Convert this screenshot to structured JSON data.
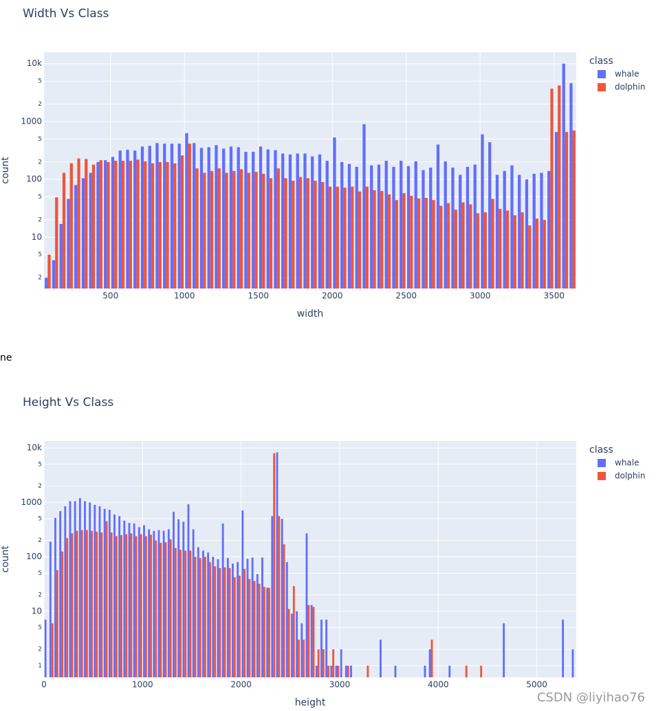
{
  "chart_data": [
    {
      "type": "histogram",
      "title": "Width Vs Class",
      "x_label": "width",
      "y_label": "count",
      "legend_title": "class",
      "log_y": true,
      "grid": true,
      "bins": [
        50,
        100,
        150,
        200,
        250,
        300,
        350,
        400,
        450,
        500,
        550,
        600,
        650,
        700,
        750,
        800,
        850,
        900,
        950,
        1000,
        1050,
        1100,
        1150,
        1200,
        1250,
        1300,
        1350,
        1400,
        1450,
        1500,
        1550,
        1600,
        1650,
        1700,
        1750,
        1800,
        1850,
        1900,
        1950,
        2000,
        2050,
        2100,
        2150,
        2200,
        2250,
        2300,
        2350,
        2400,
        2450,
        2500,
        2550,
        2600,
        2650,
        2700,
        2750,
        2800,
        2850,
        2900,
        2950,
        3000,
        3050,
        3100,
        3150,
        3200,
        3250,
        3300,
        3350,
        3400,
        3450,
        3500,
        3550,
        3600,
        3650
      ],
      "series": [
        {
          "name": "whale",
          "color": "#636efa",
          "values": [
            2,
            4,
            17,
            46,
            80,
            105,
            130,
            200,
            215,
            245,
            315,
            325,
            315,
            370,
            380,
            425,
            415,
            415,
            415,
            630,
            425,
            350,
            360,
            390,
            340,
            370,
            360,
            300,
            300,
            370,
            330,
            320,
            280,
            270,
            280,
            280,
            250,
            270,
            210,
            530,
            200,
            185,
            165,
            900,
            175,
            180,
            210,
            165,
            210,
            170,
            205,
            145,
            160,
            400,
            205,
            160,
            120,
            165,
            180,
            600,
            440,
            120,
            140,
            175,
            120,
            100,
            125,
            130,
            140,
            660,
            10000,
            4600
          ]
        },
        {
          "name": "dolphin",
          "color": "#ef553b",
          "values": [
            5,
            49,
            130,
            190,
            230,
            225,
            180,
            215,
            200,
            210,
            210,
            210,
            220,
            205,
            190,
            200,
            200,
            190,
            260,
            415,
            155,
            130,
            140,
            155,
            130,
            140,
            150,
            130,
            135,
            125,
            105,
            155,
            105,
            95,
            110,
            105,
            95,
            90,
            75,
            75,
            72,
            75,
            62,
            75,
            65,
            63,
            55,
            44,
            58,
            52,
            47,
            48,
            44,
            35,
            39,
            30,
            40,
            37,
            26,
            27,
            46,
            31,
            29,
            24,
            27,
            16,
            21,
            20,
            3700,
            4200,
            660,
            700
          ]
        }
      ],
      "xlim": [
        50,
        3650
      ],
      "xticks": [
        500,
        1000,
        1500,
        2000,
        2500,
        3000,
        3500
      ],
      "ylim": [
        1.3,
        15800
      ],
      "yticks": [
        2,
        5,
        10,
        {
          "value": 20,
          "label": "2"
        },
        {
          "value": 50,
          "label": "5"
        },
        100,
        {
          "value": 200,
          "label": "2"
        },
        {
          "value": 500,
          "label": "5"
        },
        1000,
        {
          "value": 2000,
          "label": "2"
        },
        {
          "value": 5000,
          "label": "5"
        },
        {
          "value": 10000,
          "label": "10k"
        }
      ]
    },
    {
      "type": "histogram",
      "title": "Height Vs Class",
      "x_label": "height",
      "y_label": "count",
      "legend_title": "class",
      "log_y": true,
      "grid": true,
      "bins": [
        0,
        50,
        100,
        150,
        200,
        250,
        300,
        350,
        400,
        450,
        500,
        550,
        600,
        650,
        700,
        750,
        800,
        850,
        900,
        950,
        1000,
        1050,
        1100,
        1150,
        1200,
        1250,
        1300,
        1350,
        1400,
        1450,
        1500,
        1550,
        1600,
        1650,
        1700,
        1750,
        1800,
        1850,
        1900,
        1950,
        2000,
        2050,
        2100,
        2150,
        2200,
        2250,
        2300,
        2350,
        2400,
        2450,
        2500,
        2550,
        2600,
        2650,
        2700,
        2750,
        2800,
        2850,
        2900,
        2950,
        3000,
        3050,
        3100,
        3150,
        3200,
        3250,
        3300,
        3350,
        3400,
        3450,
        3500,
        3550,
        3600,
        3650,
        3700,
        3750,
        3800,
        3850,
        3900,
        3950,
        4000,
        4050,
        4100,
        4150,
        4200,
        4250,
        4300,
        4350,
        4400,
        4450,
        4500,
        4550,
        4600,
        4650,
        4700,
        4750,
        4800,
        4850,
        4900,
        4950,
        5000,
        5050,
        5100,
        5150,
        5200,
        5250,
        5300,
        5350,
        5400
      ],
      "series": [
        {
          "name": "whale",
          "color": "#636efa",
          "values": [
            7,
            190,
            520,
            690,
            850,
            1050,
            1050,
            1200,
            1050,
            1000,
            900,
            850,
            760,
            730,
            600,
            560,
            460,
            420,
            410,
            350,
            380,
            320,
            300,
            310,
            300,
            320,
            670,
            490,
            440,
            920,
            320,
            150,
            130,
            120,
            100,
            90,
            410,
            95,
            75,
            80,
            710,
            92,
            97,
            48,
            97,
            27,
            560,
            8300,
            500,
            80,
            9,
            10,
            6,
            270,
            13,
            1,
            7,
            7,
            1,
            1,
            2,
            1,
            1,
            0,
            0,
            0,
            0,
            0,
            3,
            0,
            0,
            1,
            0,
            0,
            0,
            0,
            0,
            1,
            2,
            0,
            0,
            0,
            1,
            0,
            0,
            0,
            0,
            0,
            0,
            0,
            0,
            0,
            0,
            6,
            0,
            0,
            0,
            0,
            0,
            0,
            0,
            0,
            0,
            0,
            0,
            7,
            0,
            2
          ]
        },
        {
          "name": "dolphin",
          "color": "#ef553b",
          "values": [
            0,
            6,
            57,
            125,
            220,
            270,
            300,
            310,
            310,
            300,
            290,
            280,
            450,
            280,
            240,
            250,
            260,
            270,
            240,
            260,
            240,
            255,
            200,
            180,
            185,
            210,
            145,
            135,
            130,
            130,
            100,
            95,
            100,
            80,
            67,
            62,
            64,
            62,
            42,
            45,
            60,
            39,
            36,
            32,
            28,
            27,
            8000,
            560,
            170,
            11,
            29,
            3,
            3,
            13,
            12,
            2,
            2,
            1,
            2,
            1,
            0,
            1,
            0,
            0,
            0,
            1,
            0,
            0,
            0,
            0,
            0,
            0,
            0,
            0,
            0,
            0,
            0,
            0,
            3,
            0,
            0,
            0,
            0,
            0,
            0,
            1,
            0,
            0,
            1,
            0,
            0,
            0,
            0,
            0,
            0,
            0,
            0,
            0,
            0,
            0,
            0,
            0,
            0,
            0,
            0,
            0,
            0,
            0
          ]
        }
      ],
      "xlim": [
        0,
        5400
      ],
      "xticks": [
        0,
        1000,
        2000,
        3000,
        4000,
        5000
      ],
      "ylim": [
        0.61,
        13400
      ],
      "yticks": [
        1,
        2,
        5,
        10,
        {
          "value": 20,
          "label": "2"
        },
        {
          "value": 50,
          "label": "5"
        },
        100,
        {
          "value": 200,
          "label": "2"
        },
        {
          "value": 500,
          "label": "5"
        },
        1000,
        {
          "value": 2000,
          "label": "2"
        },
        {
          "value": 5000,
          "label": "5"
        },
        {
          "value": 10000,
          "label": "10k"
        }
      ]
    }
  ],
  "fragment": "ne",
  "watermark": "CSDN @liyihao76"
}
